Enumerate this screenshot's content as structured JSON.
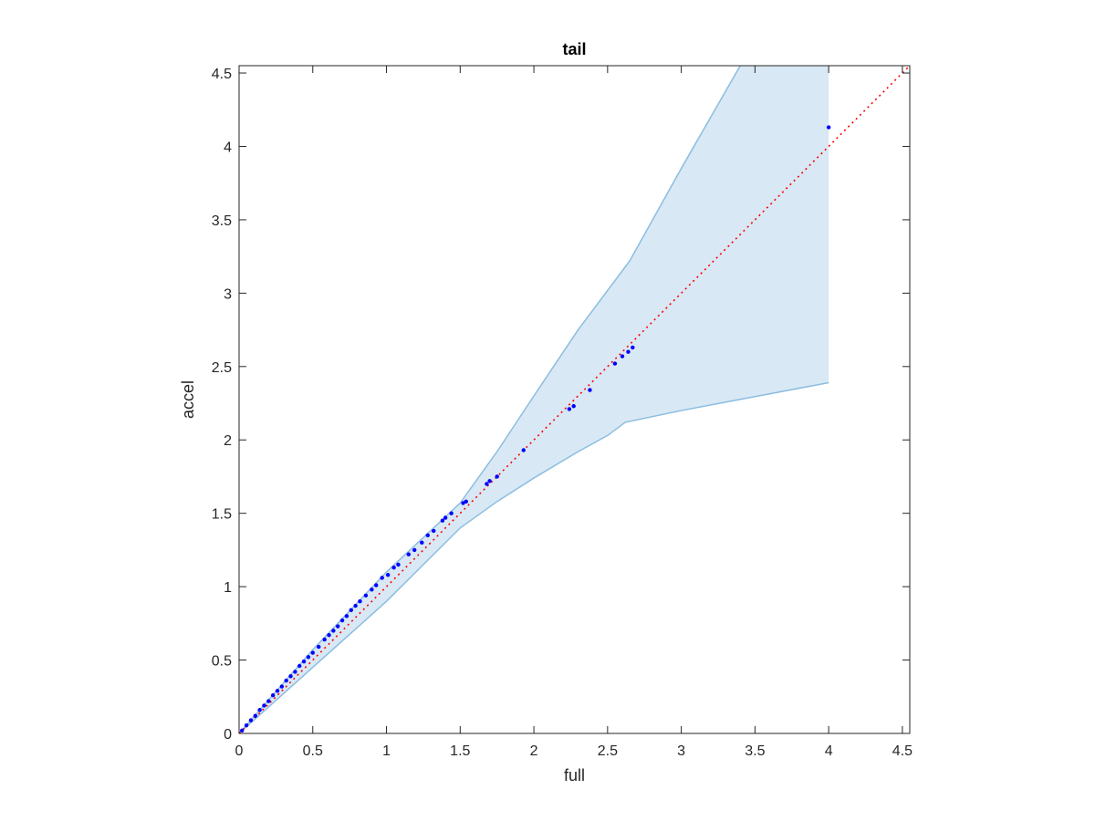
{
  "chart_data": {
    "type": "scatter",
    "title": "tail",
    "xlabel": "full",
    "ylabel": "accel",
    "xlim": [
      0,
      4.55
    ],
    "ylim": [
      0,
      4.55
    ],
    "xticks": [
      "0",
      "0.5",
      "1",
      "1.5",
      "2",
      "2.5",
      "3",
      "3.5",
      "4",
      "4.5"
    ],
    "yticks": [
      "0",
      "0.5",
      "1",
      "1.5",
      "2",
      "2.5",
      "3",
      "3.5",
      "4",
      "4.5"
    ],
    "grid": false,
    "colors": {
      "points": "#0000ff",
      "reference_line": "#ff0000",
      "band_fill": "#d8e8f4",
      "band_edge": "#8bbde0",
      "axes": "#262626"
    },
    "reference_line": {
      "style": "dotted",
      "from": [
        0,
        0
      ],
      "to": [
        4.55,
        4.55
      ]
    },
    "band": {
      "upper": [
        [
          0,
          0
        ],
        [
          0.5,
          0.57
        ],
        [
          1.0,
          1.1
        ],
        [
          1.5,
          1.57
        ],
        [
          1.75,
          1.92
        ],
        [
          2.0,
          2.3
        ],
        [
          2.3,
          2.75
        ],
        [
          2.65,
          3.22
        ],
        [
          3.0,
          3.85
        ],
        [
          3.4,
          4.55
        ],
        [
          4.0,
          4.55
        ]
      ],
      "lower": [
        [
          0,
          0
        ],
        [
          0.5,
          0.45
        ],
        [
          1.0,
          0.9
        ],
        [
          1.5,
          1.4
        ],
        [
          1.75,
          1.58
        ],
        [
          2.0,
          1.74
        ],
        [
          2.3,
          1.92
        ],
        [
          2.5,
          2.03
        ],
        [
          2.62,
          2.12
        ],
        [
          3.0,
          2.2
        ],
        [
          4.0,
          2.39
        ]
      ]
    },
    "series": [
      {
        "points": [
          [
            0.02,
            0.02
          ],
          [
            0.05,
            0.055
          ],
          [
            0.08,
            0.09
          ],
          [
            0.11,
            0.12
          ],
          [
            0.14,
            0.16
          ],
          [
            0.17,
            0.19
          ],
          [
            0.2,
            0.22
          ],
          [
            0.23,
            0.26
          ],
          [
            0.26,
            0.29
          ],
          [
            0.29,
            0.32
          ],
          [
            0.32,
            0.36
          ],
          [
            0.35,
            0.39
          ],
          [
            0.38,
            0.42
          ],
          [
            0.41,
            0.46
          ],
          [
            0.44,
            0.49
          ],
          [
            0.47,
            0.52
          ],
          [
            0.5,
            0.55
          ],
          [
            0.54,
            0.59
          ],
          [
            0.58,
            0.64
          ],
          [
            0.61,
            0.67
          ],
          [
            0.64,
            0.7
          ],
          [
            0.67,
            0.73
          ],
          [
            0.7,
            0.77
          ],
          [
            0.73,
            0.8
          ],
          [
            0.76,
            0.84
          ],
          [
            0.79,
            0.87
          ],
          [
            0.82,
            0.9
          ],
          [
            0.86,
            0.94
          ],
          [
            0.9,
            0.98
          ],
          [
            0.93,
            1.01
          ],
          [
            0.97,
            1.06
          ],
          [
            1.01,
            1.08
          ],
          [
            1.05,
            1.13
          ],
          [
            1.08,
            1.15
          ],
          [
            1.15,
            1.22
          ],
          [
            1.19,
            1.25
          ],
          [
            1.24,
            1.3
          ],
          [
            1.28,
            1.35
          ],
          [
            1.32,
            1.38
          ],
          [
            1.38,
            1.45
          ],
          [
            1.4,
            1.47
          ],
          [
            1.44,
            1.5
          ],
          [
            1.52,
            1.57
          ],
          [
            1.54,
            1.58
          ],
          [
            1.68,
            1.7
          ],
          [
            1.7,
            1.72
          ],
          [
            1.75,
            1.75
          ],
          [
            1.93,
            1.93
          ],
          [
            2.24,
            2.21
          ],
          [
            2.27,
            2.23
          ],
          [
            2.38,
            2.34
          ],
          [
            2.55,
            2.52
          ],
          [
            2.6,
            2.57
          ],
          [
            2.64,
            2.6
          ],
          [
            2.67,
            2.63
          ],
          [
            4.0,
            4.13
          ]
        ]
      }
    ]
  }
}
